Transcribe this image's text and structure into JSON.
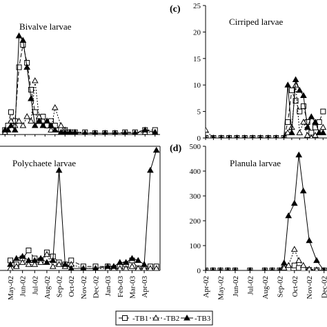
{
  "chart_data": [
    {
      "id": "a",
      "panel_label": "",
      "title": "Bivalve larvae",
      "type": "line",
      "x_tick_labels": [],
      "y_tick_labels": [],
      "series": [
        {
          "name": "TB1",
          "x": [
            0,
            0.3,
            0.6,
            1,
            1.4,
            1.8,
            2.2,
            2.6,
            3,
            3.4,
            3.8,
            4.2,
            4.6,
            5,
            5.6,
            6,
            6.5,
            7,
            8,
            9,
            10,
            11,
            12,
            13,
            14,
            15
          ],
          "values": [
            1,
            2,
            5,
            3,
            15,
            20,
            16,
            10,
            5,
            3,
            4,
            2,
            3,
            2,
            1,
            1,
            0.5,
            0.5,
            0.5,
            0.3,
            0.3,
            0.3,
            0.5,
            0.5,
            1,
            1
          ]
        },
        {
          "name": "TB2",
          "x": [
            0,
            0.3,
            0.6,
            1,
            1.4,
            1.8,
            2.2,
            2.6,
            3,
            3.4,
            3.8,
            4.2,
            4.6,
            5,
            5.6,
            6,
            6.5,
            7,
            8,
            9,
            10,
            11,
            12,
            13,
            14,
            15
          ],
          "values": [
            0.5,
            1,
            3,
            2,
            3,
            2,
            4,
            3,
            12,
            4,
            2,
            3,
            1,
            6,
            2,
            1,
            0.5,
            0.5,
            0.3,
            0.3,
            0.3,
            0.3,
            0.3,
            0.3,
            0.5,
            0.5
          ]
        },
        {
          "name": "TB3",
          "x": [
            0,
            0.3,
            0.6,
            1,
            1.4,
            1.8,
            2.2,
            2.6,
            3,
            3.4,
            3.8,
            4.2,
            4.6,
            5,
            5.6,
            6,
            6.5,
            7,
            8,
            9,
            10,
            11,
            12,
            13,
            14,
            15
          ],
          "values": [
            1,
            1,
            2,
            1,
            22,
            21,
            15,
            8,
            2,
            3,
            2,
            3,
            2,
            1,
            0.5,
            0.5,
            0.5,
            0.3,
            0.3,
            0.3,
            0.3,
            0.3,
            0.3,
            0.3,
            1,
            0.5
          ]
        }
      ]
    },
    {
      "id": "c",
      "panel_label": "(c)",
      "title": "Cirriped larvae",
      "type": "line",
      "x_tick_labels": [],
      "y_tick_labels": [
        "0",
        "5",
        "10",
        "15",
        "20",
        "25"
      ],
      "ylim": [
        0,
        25
      ],
      "series": [
        {
          "name": "TB1",
          "x": [
            0,
            1,
            2,
            3,
            4,
            5,
            6,
            7,
            8,
            9,
            10,
            10.5,
            11,
            11.5,
            12,
            12.5,
            13,
            13.5,
            14,
            14.5,
            15
          ],
          "values": [
            0,
            0,
            0,
            0,
            0,
            0,
            0,
            0,
            0,
            0,
            0,
            3,
            9,
            7,
            5,
            6,
            3,
            1,
            2,
            3,
            5
          ]
        },
        {
          "name": "TB2",
          "x": [
            0,
            1,
            2,
            3,
            4,
            5,
            6,
            7,
            8,
            9,
            10,
            10.5,
            11,
            11.5,
            12,
            12.5,
            13,
            13.5,
            14,
            14.5,
            15
          ],
          "values": [
            1.5,
            0,
            0,
            0,
            0,
            0,
            0,
            0,
            0,
            0,
            0,
            1,
            2,
            10,
            1,
            3,
            0.5,
            0,
            0.5,
            1,
            2
          ]
        },
        {
          "name": "TB3",
          "x": [
            0,
            1,
            2,
            3,
            4,
            5,
            6,
            7,
            8,
            9,
            10,
            10.5,
            11,
            11.5,
            12,
            12.5,
            13,
            13.5,
            14,
            14.5,
            15
          ],
          "values": [
            0,
            0,
            0,
            0,
            0,
            0,
            0,
            0,
            0,
            0,
            0,
            10,
            1,
            11,
            9,
            8,
            2,
            4,
            3,
            1,
            1
          ]
        }
      ]
    },
    {
      "id": "b",
      "panel_label": "",
      "title": "Polychaete larvae",
      "type": "line",
      "x_tick_labels": [
        "May-02",
        "Jun-02",
        "Jul-02",
        "Aug-02",
        "Sep-02",
        "Oct-02",
        "Nov-02",
        "Dec-02",
        "Jan-03",
        "Feb-03",
        "Mar-03",
        "Apr-03"
      ],
      "y_tick_labels": [],
      "series": [
        {
          "name": "TB1",
          "x": [
            0,
            0.5,
            1,
            1.5,
            2,
            2.5,
            3,
            3.5,
            4,
            4.5,
            5,
            6,
            7,
            8,
            8.5,
            9,
            9.5,
            10,
            10.5,
            11,
            11.5,
            12
          ],
          "values": [
            5,
            3,
            6,
            10,
            6,
            5,
            9,
            7,
            4,
            3,
            5,
            2,
            2,
            2,
            1,
            2,
            3,
            5,
            1,
            1,
            2,
            2
          ]
        },
        {
          "name": "TB2",
          "x": [
            0,
            0.5,
            1,
            1.5,
            2,
            2.5,
            3,
            3.5,
            4,
            4.5,
            5,
            6,
            7,
            8,
            8.5,
            9,
            9.5,
            10,
            10.5,
            11,
            11.5,
            12
          ],
          "values": [
            1,
            2,
            4,
            3,
            3,
            4,
            8,
            2,
            3,
            2,
            3,
            1,
            1,
            1,
            1,
            1,
            1,
            2,
            1,
            1,
            1,
            1
          ]
        },
        {
          "name": "TB3",
          "x": [
            0,
            0.5,
            1,
            1.5,
            2,
            2.5,
            3,
            3.5,
            4,
            4.5,
            5,
            6,
            7,
            8,
            8.5,
            9,
            9.5,
            10,
            10.5,
            11,
            11.5,
            12
          ],
          "values": [
            3,
            6,
            7,
            5,
            5,
            6,
            4,
            5,
            50,
            3,
            1,
            1,
            1,
            2,
            2,
            4,
            4,
            6,
            5,
            3,
            50,
            60
          ]
        }
      ]
    },
    {
      "id": "d",
      "panel_label": "(d)",
      "title": "Planula larvae",
      "type": "line",
      "x_tick_labels": [
        "Apr-02",
        "May-02",
        "Jun-02",
        "Jul-02",
        "Aug-02",
        "Sep-02",
        "Oct-02",
        "Nov-02",
        "Dec-02"
      ],
      "y_tick_labels": [
        "0",
        "100",
        "200",
        "300",
        "400",
        "500"
      ],
      "ylim": [
        0,
        500
      ],
      "series": [
        {
          "name": "TB1",
          "x": [
            0,
            0.5,
            1,
            1.5,
            2,
            3,
            4,
            4.5,
            5,
            5.3,
            5.6,
            6,
            6.3,
            6.6,
            7,
            7.5,
            8
          ],
          "values": [
            0,
            0,
            0,
            0,
            0,
            0,
            0,
            0,
            0,
            5,
            8,
            20,
            10,
            5,
            2,
            1,
            0
          ]
        },
        {
          "name": "TB2",
          "x": [
            0,
            0.5,
            1,
            1.5,
            2,
            3,
            4,
            4.5,
            5,
            5.3,
            5.6,
            6,
            6.3,
            6.6,
            7,
            7.5,
            8
          ],
          "values": [
            0,
            0,
            0,
            0,
            0,
            0,
            0,
            0,
            0,
            10,
            20,
            85,
            40,
            20,
            5,
            2,
            0
          ]
        },
        {
          "name": "TB3",
          "x": [
            0,
            0.5,
            1,
            1.5,
            2,
            3,
            4,
            4.5,
            5,
            5.3,
            5.6,
            6,
            6.3,
            6.6,
            7,
            7.5,
            8
          ],
          "values": [
            0,
            0,
            0,
            0,
            0,
            0,
            0,
            0,
            0,
            30,
            220,
            270,
            465,
            320,
            120,
            40,
            0
          ]
        }
      ]
    }
  ],
  "legend": {
    "items": [
      {
        "label": "TB1",
        "marker": "square",
        "dash": "6,3"
      },
      {
        "label": "TB2",
        "marker": "triangle-open",
        "dash": "2,2"
      },
      {
        "label": "TB3",
        "marker": "triangle-filled",
        "dash": ""
      }
    ]
  }
}
